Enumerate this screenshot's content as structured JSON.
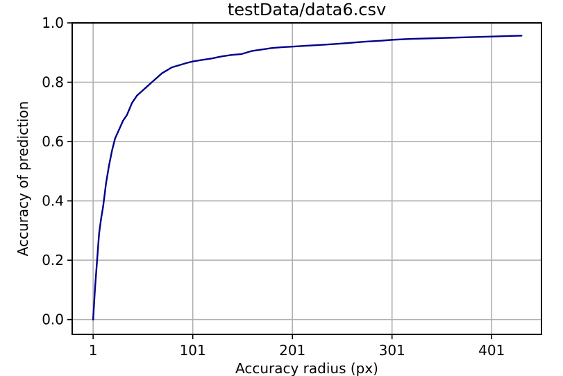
{
  "chart_data": {
    "type": "line",
    "title": "testData/data6.csv",
    "xlabel": "Accuracy radius (px)",
    "ylabel": "Accuracy of prediction",
    "xlim": [
      -20,
      451
    ],
    "ylim": [
      -0.05,
      1.0
    ],
    "grid": true,
    "x_ticks": [
      1,
      101,
      201,
      301,
      401
    ],
    "x_tick_labels": [
      "1",
      "101",
      "201",
      "301",
      "401"
    ],
    "y_ticks": [
      0.0,
      0.2,
      0.4,
      0.6,
      0.8,
      1.0
    ],
    "y_tick_labels": [
      "0.0",
      "0.2",
      "0.4",
      "0.6",
      "0.8",
      "1.0"
    ],
    "line_color": "#00008b",
    "series": [
      {
        "x": [
          1,
          3,
          5,
          7,
          9,
          11,
          14,
          17,
          20,
          23,
          27,
          31,
          35,
          40,
          45,
          50,
          55,
          60,
          65,
          70,
          75,
          80,
          85,
          90,
          95,
          101,
          110,
          120,
          130,
          140,
          150,
          160,
          170,
          180,
          190,
          201,
          215,
          230,
          245,
          260,
          275,
          290,
          301,
          320,
          340,
          360,
          380,
          401,
          420,
          431
        ],
        "y": [
          0.0,
          0.11,
          0.2,
          0.29,
          0.34,
          0.38,
          0.46,
          0.52,
          0.57,
          0.61,
          0.64,
          0.67,
          0.69,
          0.73,
          0.755,
          0.77,
          0.785,
          0.8,
          0.815,
          0.83,
          0.84,
          0.85,
          0.855,
          0.86,
          0.865,
          0.87,
          0.875,
          0.88,
          0.887,
          0.892,
          0.895,
          0.905,
          0.91,
          0.915,
          0.918,
          0.92,
          0.923,
          0.926,
          0.929,
          0.933,
          0.937,
          0.94,
          0.943,
          0.946,
          0.948,
          0.95,
          0.952,
          0.954,
          0.956,
          0.957
        ]
      }
    ]
  }
}
